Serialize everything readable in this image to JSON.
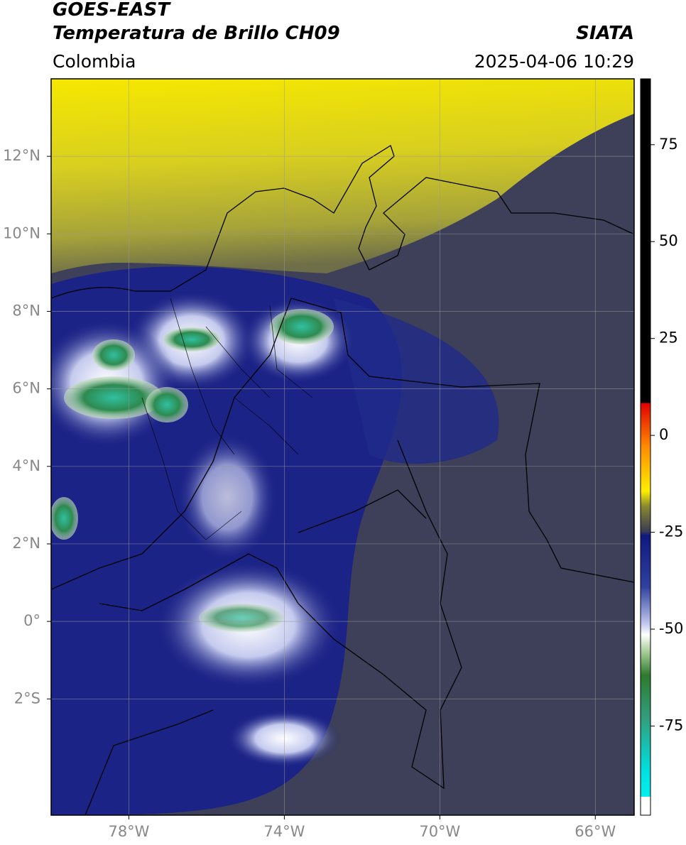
{
  "header": {
    "title_line1": "GOES-EAST",
    "title_line2": "Temperatura de Brillo CH09",
    "brand": "SIATA",
    "region": "Colombia",
    "datetime": "2025-04-06 10:29"
  },
  "map": {
    "xlim": [
      -80,
      -65
    ],
    "ylim": [
      -5,
      14
    ],
    "grid": true,
    "xticks": [
      {
        "value": -78,
        "label": "78°W"
      },
      {
        "value": -74,
        "label": "74°W"
      },
      {
        "value": -70,
        "label": "70°W"
      },
      {
        "value": -66,
        "label": "66°W"
      }
    ],
    "yticks": [
      {
        "value": -2,
        "label": "2°S"
      },
      {
        "value": 0,
        "label": "0°"
      },
      {
        "value": 2,
        "label": "2°N"
      },
      {
        "value": 4,
        "label": "4°N"
      },
      {
        "value": 6,
        "label": "6°N"
      },
      {
        "value": 8,
        "label": "8°N"
      },
      {
        "value": 10,
        "label": "10°N"
      },
      {
        "value": 12,
        "label": "12°N"
      }
    ]
  },
  "colorbar": {
    "clim": [
      -98,
      92
    ],
    "ticks": [
      -75,
      -50,
      -25,
      0,
      25,
      50,
      75
    ]
  }
}
